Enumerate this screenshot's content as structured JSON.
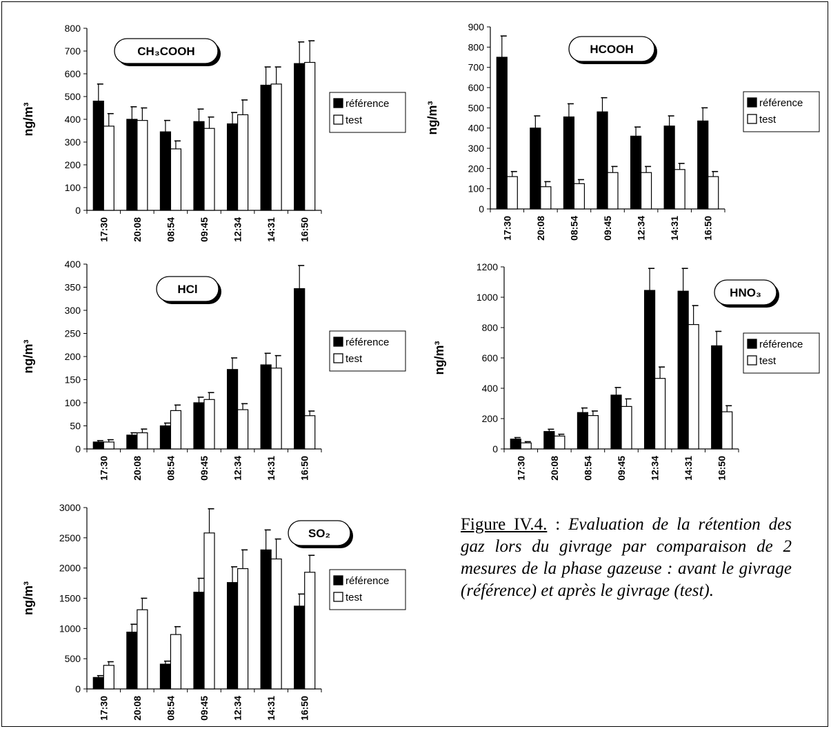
{
  "caption": {
    "label": "Figure IV.4.",
    "separator": " : ",
    "text": "Evaluation de la rétention des gaz lors du givrage par comparaison de 2 mesures de la phase gazeuse : avant le givrage (référence) et après le givrage (test)."
  },
  "colors": {
    "reference": "#000000",
    "test": "#ffffff",
    "axis": "#000000"
  },
  "chart_data": [
    {
      "type": "bar",
      "title": "CH₃COOH",
      "ylabel": "ng/m³",
      "categories": [
        "17:30",
        "20:08",
        "08:54",
        "09:45",
        "12:34",
        "14:31",
        "16:50"
      ],
      "ylim": [
        0,
        800
      ],
      "yticks": [
        0,
        100,
        200,
        300,
        400,
        500,
        600,
        700,
        800
      ],
      "legend_position": "right",
      "series": [
        {
          "name": "référence",
          "values": [
            480,
            400,
            345,
            390,
            380,
            550,
            645
          ],
          "errors": [
            75,
            55,
            50,
            55,
            50,
            80,
            95
          ]
        },
        {
          "name": "test",
          "values": [
            370,
            395,
            270,
            360,
            420,
            555,
            650
          ],
          "errors": [
            55,
            55,
            35,
            50,
            65,
            75,
            95
          ]
        }
      ]
    },
    {
      "type": "bar",
      "title": "HCOOH",
      "ylabel": "ng/m³",
      "categories": [
        "17:30",
        "20:08",
        "08:54",
        "09:45",
        "12:34",
        "14:31",
        "16:50"
      ],
      "ylim": [
        0,
        900
      ],
      "yticks": [
        0,
        100,
        200,
        300,
        400,
        500,
        600,
        700,
        800,
        900
      ],
      "legend_position": "right",
      "series": [
        {
          "name": "référence",
          "values": [
            750,
            400,
            455,
            480,
            360,
            410,
            435
          ],
          "errors": [
            105,
            60,
            65,
            70,
            45,
            50,
            65
          ]
        },
        {
          "name": "test",
          "values": [
            160,
            110,
            125,
            180,
            180,
            195,
            160
          ],
          "errors": [
            25,
            25,
            20,
            30,
            30,
            30,
            25
          ]
        }
      ]
    },
    {
      "type": "bar",
      "title": "HCl",
      "ylabel": "ng/m³",
      "categories": [
        "17:30",
        "20:08",
        "08:54",
        "09:45",
        "12:34",
        "14:31",
        "16:50"
      ],
      "ylim": [
        0,
        400
      ],
      "yticks": [
        0,
        50,
        100,
        150,
        200,
        250,
        300,
        350,
        400
      ],
      "legend_position": "right",
      "series": [
        {
          "name": "référence",
          "values": [
            15,
            30,
            50,
            100,
            172,
            182,
            347
          ],
          "errors": [
            3,
            5,
            6,
            12,
            25,
            25,
            50
          ]
        },
        {
          "name": "test",
          "values": [
            15,
            35,
            83,
            107,
            85,
            175,
            72
          ],
          "errors": [
            5,
            8,
            12,
            15,
            13,
            27,
            10
          ]
        }
      ]
    },
    {
      "type": "bar",
      "title": "HNO₃",
      "ylabel": "ng/m³",
      "categories": [
        "17:30",
        "20:08",
        "08:54",
        "09:45",
        "12:34",
        "14:31",
        "16:50"
      ],
      "ylim": [
        0,
        1200
      ],
      "yticks": [
        0,
        200,
        400,
        600,
        800,
        1000,
        1200
      ],
      "legend_position": "right",
      "series": [
        {
          "name": "référence",
          "values": [
            65,
            115,
            240,
            355,
            1045,
            1040,
            680
          ],
          "errors": [
            10,
            15,
            30,
            50,
            145,
            150,
            95
          ]
        },
        {
          "name": "test",
          "values": [
            40,
            85,
            220,
            280,
            465,
            820,
            245
          ],
          "errors": [
            8,
            12,
            30,
            50,
            75,
            125,
            40
          ]
        }
      ]
    },
    {
      "type": "bar",
      "title": "SO₂",
      "ylabel": "ng/m³",
      "categories": [
        "17:30",
        "20:08",
        "08:54",
        "09:45",
        "12:34",
        "14:31",
        "16:50"
      ],
      "ylim": [
        0,
        3000
      ],
      "yticks": [
        0,
        500,
        1000,
        1500,
        2000,
        2500,
        3000
      ],
      "legend_position": "right",
      "series": [
        {
          "name": "référence",
          "values": [
            190,
            940,
            410,
            1600,
            1760,
            2300,
            1370
          ],
          "errors": [
            30,
            130,
            50,
            230,
            260,
            330,
            200
          ]
        },
        {
          "name": "test",
          "values": [
            390,
            1310,
            900,
            2580,
            1990,
            2150,
            1930
          ],
          "errors": [
            60,
            190,
            130,
            400,
            310,
            330,
            280
          ]
        }
      ]
    }
  ]
}
